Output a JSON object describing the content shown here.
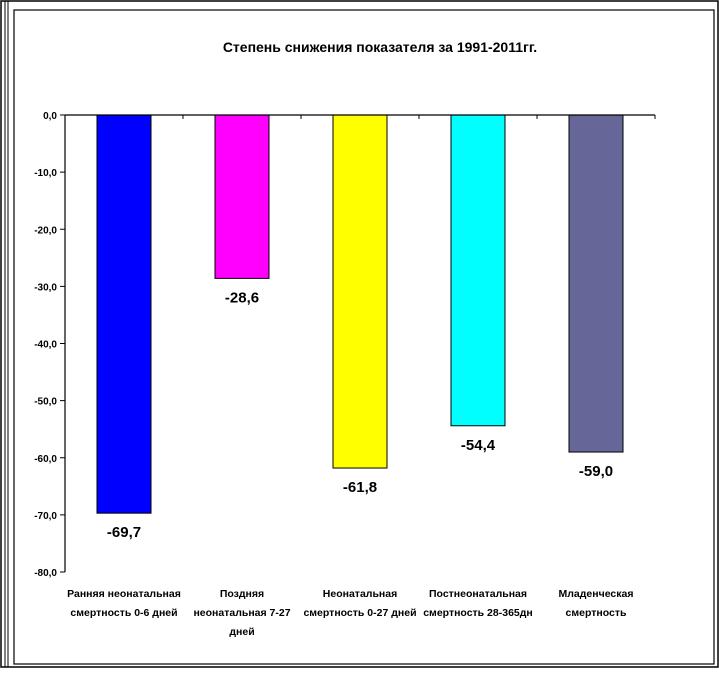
{
  "chart_data": {
    "type": "bar",
    "title": "Степень снижения  показателя за 1991-2011гг.",
    "xlabel": "",
    "ylabel": "",
    "ylim": [
      -80,
      0
    ],
    "yticks": [
      0,
      -10,
      -20,
      -30,
      -40,
      -50,
      -60,
      -70,
      -80
    ],
    "ytick_labels": [
      "0,0",
      "-10,0",
      "-20,0",
      "-30,0",
      "-40,0",
      "-50,0",
      "-60,0",
      "-70,0",
      "-80,0"
    ],
    "grid": false,
    "legend": "none",
    "categories": [
      [
        "Ранняя неонатальная",
        "смертность 0-6 дней"
      ],
      [
        "Поздняя",
        "неонатальная 7-27",
        "дней"
      ],
      [
        "Неонатальная",
        "смертность 0-27 дней"
      ],
      [
        "Постнеонатальная",
        "смертность 28-365дн"
      ],
      [
        "Младенческая",
        "смертность"
      ]
    ],
    "values": [
      -69.7,
      -28.6,
      -61.8,
      -54.4,
      -59.0
    ],
    "data_labels": [
      "-69,7",
      "-28,6",
      "-61,8",
      "-54,4",
      "-59,0"
    ],
    "colors": [
      "#0000ff",
      "#ff00ff",
      "#ffff00",
      "#00ffff",
      "#666699"
    ]
  }
}
